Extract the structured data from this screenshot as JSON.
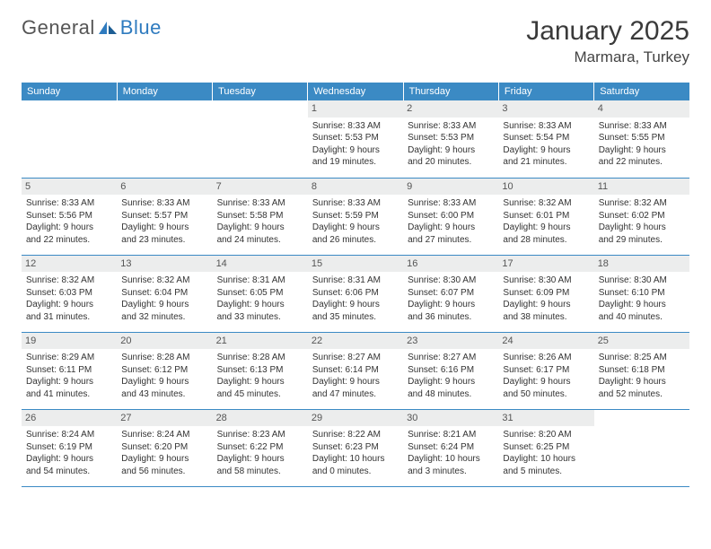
{
  "brand": {
    "part1": "General",
    "part2": "Blue"
  },
  "title": "January 2025",
  "location": "Marmara, Turkey",
  "weekdays": [
    "Sunday",
    "Monday",
    "Tuesday",
    "Wednesday",
    "Thursday",
    "Friday",
    "Saturday"
  ],
  "colors": {
    "header_bg": "#3b8ac4",
    "daynum_bg": "#eceded",
    "border": "#3b8ac4"
  },
  "weeks": [
    [
      null,
      null,
      null,
      {
        "n": "1",
        "sunrise": "8:33 AM",
        "sunset": "5:53 PM",
        "dl1": "Daylight: 9 hours",
        "dl2": "and 19 minutes."
      },
      {
        "n": "2",
        "sunrise": "8:33 AM",
        "sunset": "5:53 PM",
        "dl1": "Daylight: 9 hours",
        "dl2": "and 20 minutes."
      },
      {
        "n": "3",
        "sunrise": "8:33 AM",
        "sunset": "5:54 PM",
        "dl1": "Daylight: 9 hours",
        "dl2": "and 21 minutes."
      },
      {
        "n": "4",
        "sunrise": "8:33 AM",
        "sunset": "5:55 PM",
        "dl1": "Daylight: 9 hours",
        "dl2": "and 22 minutes."
      }
    ],
    [
      {
        "n": "5",
        "sunrise": "8:33 AM",
        "sunset": "5:56 PM",
        "dl1": "Daylight: 9 hours",
        "dl2": "and 22 minutes."
      },
      {
        "n": "6",
        "sunrise": "8:33 AM",
        "sunset": "5:57 PM",
        "dl1": "Daylight: 9 hours",
        "dl2": "and 23 minutes."
      },
      {
        "n": "7",
        "sunrise": "8:33 AM",
        "sunset": "5:58 PM",
        "dl1": "Daylight: 9 hours",
        "dl2": "and 24 minutes."
      },
      {
        "n": "8",
        "sunrise": "8:33 AM",
        "sunset": "5:59 PM",
        "dl1": "Daylight: 9 hours",
        "dl2": "and 26 minutes."
      },
      {
        "n": "9",
        "sunrise": "8:33 AM",
        "sunset": "6:00 PM",
        "dl1": "Daylight: 9 hours",
        "dl2": "and 27 minutes."
      },
      {
        "n": "10",
        "sunrise": "8:32 AM",
        "sunset": "6:01 PM",
        "dl1": "Daylight: 9 hours",
        "dl2": "and 28 minutes."
      },
      {
        "n": "11",
        "sunrise": "8:32 AM",
        "sunset": "6:02 PM",
        "dl1": "Daylight: 9 hours",
        "dl2": "and 29 minutes."
      }
    ],
    [
      {
        "n": "12",
        "sunrise": "8:32 AM",
        "sunset": "6:03 PM",
        "dl1": "Daylight: 9 hours",
        "dl2": "and 31 minutes."
      },
      {
        "n": "13",
        "sunrise": "8:32 AM",
        "sunset": "6:04 PM",
        "dl1": "Daylight: 9 hours",
        "dl2": "and 32 minutes."
      },
      {
        "n": "14",
        "sunrise": "8:31 AM",
        "sunset": "6:05 PM",
        "dl1": "Daylight: 9 hours",
        "dl2": "and 33 minutes."
      },
      {
        "n": "15",
        "sunrise": "8:31 AM",
        "sunset": "6:06 PM",
        "dl1": "Daylight: 9 hours",
        "dl2": "and 35 minutes."
      },
      {
        "n": "16",
        "sunrise": "8:30 AM",
        "sunset": "6:07 PM",
        "dl1": "Daylight: 9 hours",
        "dl2": "and 36 minutes."
      },
      {
        "n": "17",
        "sunrise": "8:30 AM",
        "sunset": "6:09 PM",
        "dl1": "Daylight: 9 hours",
        "dl2": "and 38 minutes."
      },
      {
        "n": "18",
        "sunrise": "8:30 AM",
        "sunset": "6:10 PM",
        "dl1": "Daylight: 9 hours",
        "dl2": "and 40 minutes."
      }
    ],
    [
      {
        "n": "19",
        "sunrise": "8:29 AM",
        "sunset": "6:11 PM",
        "dl1": "Daylight: 9 hours",
        "dl2": "and 41 minutes."
      },
      {
        "n": "20",
        "sunrise": "8:28 AM",
        "sunset": "6:12 PM",
        "dl1": "Daylight: 9 hours",
        "dl2": "and 43 minutes."
      },
      {
        "n": "21",
        "sunrise": "8:28 AM",
        "sunset": "6:13 PM",
        "dl1": "Daylight: 9 hours",
        "dl2": "and 45 minutes."
      },
      {
        "n": "22",
        "sunrise": "8:27 AM",
        "sunset": "6:14 PM",
        "dl1": "Daylight: 9 hours",
        "dl2": "and 47 minutes."
      },
      {
        "n": "23",
        "sunrise": "8:27 AM",
        "sunset": "6:16 PM",
        "dl1": "Daylight: 9 hours",
        "dl2": "and 48 minutes."
      },
      {
        "n": "24",
        "sunrise": "8:26 AM",
        "sunset": "6:17 PM",
        "dl1": "Daylight: 9 hours",
        "dl2": "and 50 minutes."
      },
      {
        "n": "25",
        "sunrise": "8:25 AM",
        "sunset": "6:18 PM",
        "dl1": "Daylight: 9 hours",
        "dl2": "and 52 minutes."
      }
    ],
    [
      {
        "n": "26",
        "sunrise": "8:24 AM",
        "sunset": "6:19 PM",
        "dl1": "Daylight: 9 hours",
        "dl2": "and 54 minutes."
      },
      {
        "n": "27",
        "sunrise": "8:24 AM",
        "sunset": "6:20 PM",
        "dl1": "Daylight: 9 hours",
        "dl2": "and 56 minutes."
      },
      {
        "n": "28",
        "sunrise": "8:23 AM",
        "sunset": "6:22 PM",
        "dl1": "Daylight: 9 hours",
        "dl2": "and 58 minutes."
      },
      {
        "n": "29",
        "sunrise": "8:22 AM",
        "sunset": "6:23 PM",
        "dl1": "Daylight: 10 hours",
        "dl2": "and 0 minutes."
      },
      {
        "n": "30",
        "sunrise": "8:21 AM",
        "sunset": "6:24 PM",
        "dl1": "Daylight: 10 hours",
        "dl2": "and 3 minutes."
      },
      {
        "n": "31",
        "sunrise": "8:20 AM",
        "sunset": "6:25 PM",
        "dl1": "Daylight: 10 hours",
        "dl2": "and 5 minutes."
      },
      null
    ]
  ]
}
